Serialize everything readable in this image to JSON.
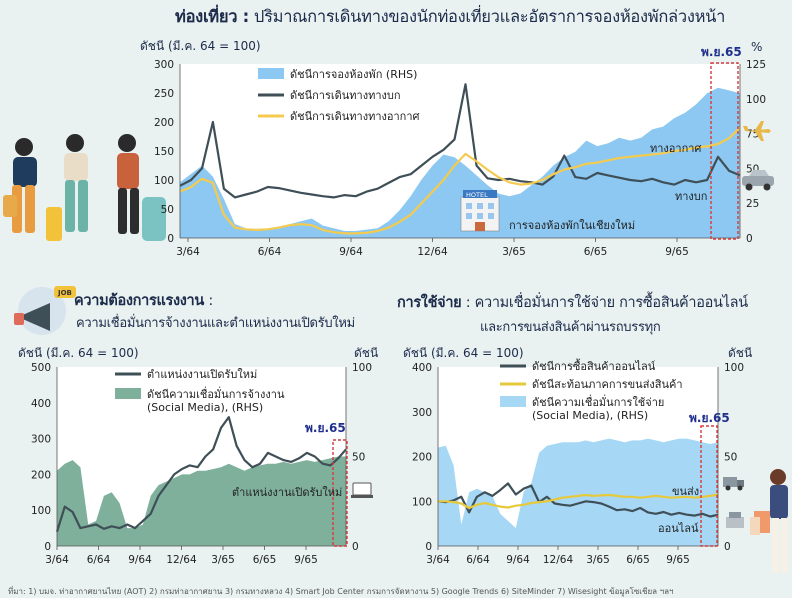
{
  "header": {
    "title_bold": "ท่องเที่ยว :",
    "title_rest": "ปริมาณการเดินทางของนักท่องเที่ยวและอัตราการจองห้องพักล่วงหน้า",
    "lhs_unit": "ดัชนี (มี.ค. 64 = 100)",
    "rhs_unit": "%",
    "period_tag": "พ.ย.65"
  },
  "labor": {
    "title_bold": "ความต้องการแรงงาน",
    "title_colon": ":",
    "subtitle": "ความเชื่อมั่นการจ้างงานและตำแหน่งงานเปิดรับใหม่",
    "lhs_unit": "ดัชนี (มี.ค. 64 = 100)",
    "rhs_unit": "ดัชนี",
    "period_tag": "พ.ย.65",
    "job_badge": "JOB"
  },
  "spending": {
    "title_bold": "การใช้จ่าย",
    "title_rest": ": ความเชื่อมั่นการใช้จ่าย การซื้อสินค้าออนไลน์",
    "subtitle": "และการขนส่งสินค้าผ่านรถบรรทุก",
    "lhs_unit": "ดัชนี (มี.ค. 64 = 100)",
    "rhs_unit": "ดัชนี",
    "period_tag": "พ.ย.65"
  },
  "icons": [
    "traveler-icon",
    "hotel-icon",
    "airplane-icon",
    "car-icon",
    "megaphone-icon",
    "laptop-icon",
    "truck-icon",
    "cash-register-icon",
    "shopper-icon"
  ],
  "footer": "ที่มา: 1) บมจ. ท่าอากาศยานไทย (AOT) 2) กรมท่าอากาศยาน 3) กรมทางหลวง 4) Smart Job Center กรมการจัดหางาน 5) Google Trends 6) SiteMinder 7) Wisesight ข้อมูลโซเชียล ฯลฯ",
  "chart_data": [
    {
      "type": "line",
      "x_ticks": [
        "3/64",
        "6/64",
        "9/64",
        "12/64",
        "3/65",
        "6/65",
        "9/65"
      ],
      "ylim": [
        0,
        300
      ],
      "y_ticks": [
        0,
        50,
        100,
        150,
        200,
        250,
        300
      ],
      "y2lim": [
        0,
        125
      ],
      "y2_ticks": [
        0,
        25,
        50,
        75,
        100,
        125
      ],
      "series": [
        {
          "name": "ดัชนีการจองห้องพัก (RHS)",
          "kind": "area",
          "axis": "right",
          "color": "#8cc8f2",
          "values": [
            40,
            46,
            52,
            44,
            28,
            10,
            7,
            6,
            7,
            8,
            10,
            12,
            14,
            9,
            7,
            5,
            5,
            6,
            7,
            12,
            20,
            30,
            42,
            52,
            60,
            58,
            52,
            45,
            38,
            32,
            30,
            32,
            38,
            44,
            52,
            58,
            62,
            70,
            66,
            68,
            72,
            70,
            72,
            78,
            80,
            86,
            90,
            96,
            104,
            108,
            106,
            104
          ]
        },
        {
          "name": "ดัชนีการเดินทางทางบก",
          "kind": "line",
          "axis": "left",
          "color": "#3f4f57",
          "values": [
            90,
            100,
            120,
            200,
            85,
            70,
            75,
            80,
            88,
            86,
            82,
            78,
            75,
            72,
            70,
            74,
            72,
            80,
            85,
            95,
            105,
            110,
            125,
            140,
            152,
            170,
            265,
            125,
            103,
            100,
            102,
            98,
            96,
            92,
            106,
            142,
            105,
            102,
            112,
            108,
            104,
            100,
            98,
            102,
            96,
            92,
            100,
            96,
            100,
            140,
            116,
            108
          ]
        },
        {
          "name": "ดัชนีการเดินทางทางอากาศ",
          "kind": "line",
          "axis": "left",
          "color": "#f4cb4e",
          "values": [
            80,
            88,
            102,
            95,
            40,
            18,
            15,
            14,
            15,
            18,
            22,
            24,
            22,
            14,
            10,
            8,
            8,
            9,
            12,
            18,
            28,
            40,
            60,
            80,
            100,
            125,
            145,
            132,
            118,
            105,
            96,
            92,
            94,
            100,
            110,
            118,
            122,
            128,
            130,
            134,
            138,
            140,
            142,
            144,
            146,
            150,
            152,
            156,
            158,
            162,
            172,
            190
          ]
        }
      ],
      "annotations": [
        "โรงแรม",
        "การจองห้องพักในเชียงใหม่",
        "ทางอากาศ",
        "ทางบก"
      ]
    },
    {
      "type": "line",
      "x_ticks": [
        "3/64",
        "6/64",
        "9/64",
        "12/64",
        "3/65",
        "6/65",
        "9/65"
      ],
      "ylim": [
        0,
        500
      ],
      "y_ticks": [
        0,
        100,
        200,
        300,
        400,
        500
      ],
      "y2lim": [
        0,
        100
      ],
      "y2_ticks": [
        0,
        50,
        100
      ],
      "series": [
        {
          "name": "ตำแหน่งงานเปิดรับใหม่",
          "kind": "line",
          "axis": "left",
          "color": "#3f4f57",
          "values": [
            40,
            110,
            95,
            50,
            55,
            60,
            48,
            55,
            50,
            60,
            50,
            70,
            90,
            140,
            170,
            200,
            215,
            225,
            220,
            250,
            270,
            330,
            360,
            280,
            240,
            220,
            230,
            260,
            250,
            240,
            235,
            245,
            260,
            250,
            230,
            225,
            245,
            270
          ]
        },
        {
          "name": "ดัชนีความเชื่อมั่นการจ้างงาน (Social Media), (RHS)",
          "kind": "area",
          "axis": "right",
          "color": "#7fb09b",
          "values": [
            42,
            46,
            48,
            44,
            12,
            14,
            28,
            30,
            24,
            10,
            10,
            12,
            28,
            34,
            36,
            38,
            40,
            40,
            42,
            42,
            43,
            44,
            46,
            44,
            42,
            44,
            45,
            46,
            46,
            47,
            46,
            47,
            48,
            47,
            48,
            49,
            50,
            50
          ]
        }
      ],
      "annotations": [
        "ตำแหน่งงานเปิดรับใหม่"
      ]
    },
    {
      "type": "line",
      "x_ticks": [
        "3/64",
        "6/64",
        "9/64",
        "12/64",
        "3/65",
        "6/65",
        "9/65"
      ],
      "ylim": [
        0,
        400
      ],
      "y_ticks": [
        0,
        100,
        200,
        300,
        400
      ],
      "y2lim": [
        0,
        100
      ],
      "y2_ticks": [
        0,
        50,
        100
      ],
      "series": [
        {
          "name": "ดัชนีการซื้อสินค้าออนไลน์",
          "kind": "line",
          "axis": "left",
          "color": "#3f4f57",
          "values": [
            100,
            98,
            102,
            110,
            75,
            110,
            120,
            112,
            125,
            140,
            115,
            128,
            135,
            98,
            110,
            95,
            92,
            90,
            95,
            100,
            98,
            95,
            88,
            80,
            82,
            78,
            85,
            75,
            72,
            76,
            70,
            74,
            70,
            68,
            72,
            66,
            70
          ]
        },
        {
          "name": "ดัชนีสะท้อนภาคการขนส่งสินค้า",
          "kind": "line",
          "axis": "left",
          "color": "#e6c93b",
          "values": [
            100,
            100,
            98,
            95,
            85,
            92,
            96,
            92,
            88,
            86,
            90,
            92,
            96,
            98,
            100,
            104,
            108,
            110,
            112,
            114,
            112,
            113,
            114,
            112,
            110,
            110,
            108,
            110,
            112,
            110,
            108,
            109,
            110,
            108,
            110,
            112,
            115
          ]
        },
        {
          "name": "ดัชนีความเชื่อมั่นการใช้จ่าย (Social Media), (RHS)",
          "kind": "area",
          "axis": "right",
          "color": "#a6d8f6",
          "values": [
            55,
            56,
            45,
            12,
            30,
            32,
            30,
            28,
            18,
            14,
            10,
            30,
            35,
            52,
            56,
            57,
            58,
            58,
            58,
            59,
            58,
            59,
            60,
            59,
            58,
            59,
            59,
            60,
            59,
            58,
            59,
            60,
            60,
            59,
            58,
            57,
            58
          ]
        }
      ],
      "annotations": [
        "ขนส่ง",
        "ออนไลน์"
      ]
    }
  ]
}
